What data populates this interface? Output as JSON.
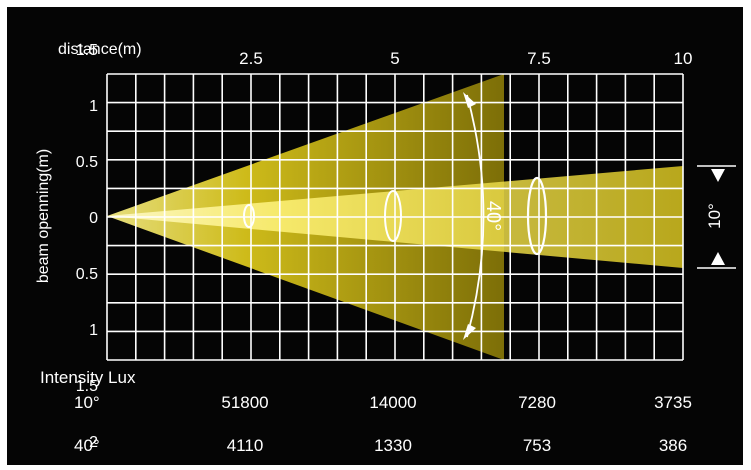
{
  "distance_axis": {
    "label": "distance(m)",
    "ticks": [
      "2.5",
      "5",
      "7.5",
      "10"
    ],
    "range_m": [
      0,
      10
    ]
  },
  "opening_axis": {
    "label": "beam openning(m)",
    "ticks": [
      "2",
      "1.5",
      "1",
      "0.5",
      "0",
      "0.5",
      "1",
      "1.5",
      "2"
    ],
    "range_m": [
      -2,
      2
    ]
  },
  "beams": [
    {
      "angle_label": "40°",
      "angle_deg": 40,
      "color": "#c9b410"
    },
    {
      "angle_label": "10°",
      "angle_deg": 10,
      "color": "#fff27a"
    }
  ],
  "grid": true,
  "intensity": {
    "title": "Intensity Lux",
    "rows": [
      {
        "angle": "10°",
        "values": [
          "51800",
          "14000",
          "7280",
          "3735"
        ]
      },
      {
        "angle": "40°",
        "values": [
          "4110",
          "1330",
          "753",
          "386"
        ]
      }
    ]
  },
  "colors": {
    "background": "#050505",
    "grid": "#ffffff",
    "text": "#ffffff",
    "outer_beam": "#bfae0e",
    "inner_beam": "#fff16a"
  }
}
